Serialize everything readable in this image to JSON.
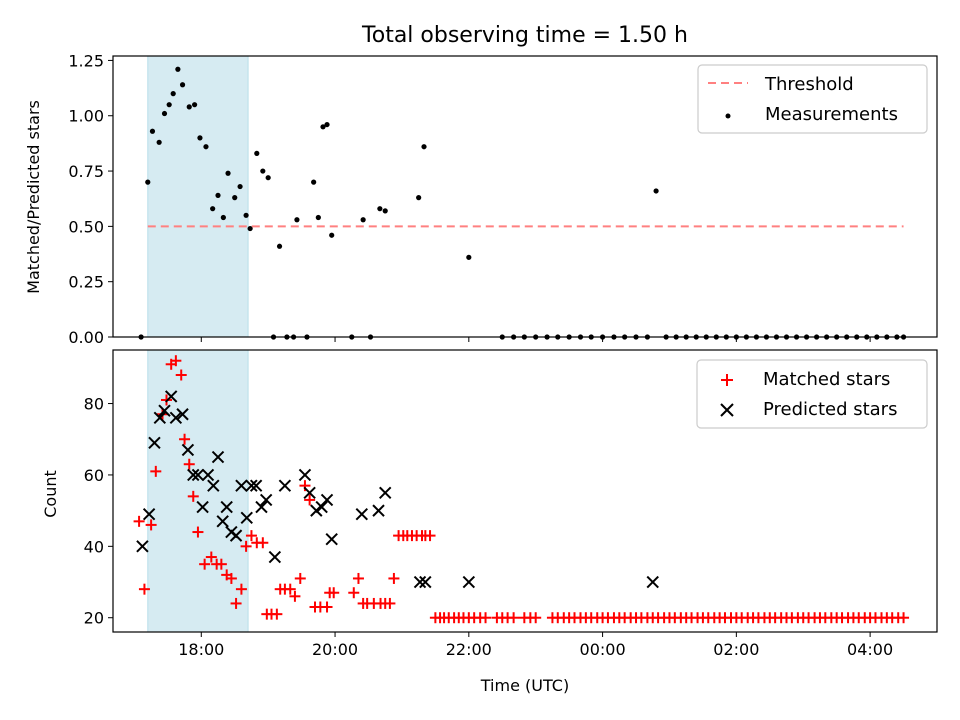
{
  "chart_data": [
    {
      "type": "scatter",
      "title": "Total observing time = 1.50 h",
      "ylabel": "Matched/Predicted stars",
      "xlabel": "",
      "ylim": [
        0,
        1.27
      ],
      "yticks": [
        0,
        0.25,
        0.5,
        0.75,
        1.0,
        1.25
      ],
      "ytick_labels": [
        "0.00",
        "0.25",
        "0.50",
        "0.75",
        "1.00",
        "1.25"
      ],
      "xlim_hours": [
        16.68,
        29.0
      ],
      "xtick_hours": [
        18,
        20,
        22,
        24,
        26,
        28
      ],
      "xtick_labels": [
        "",
        "",
        "",
        "",
        "",
        ""
      ],
      "shaded_span_hours": [
        17.2,
        18.7
      ],
      "threshold": {
        "name": "Threshold",
        "value": 0.5,
        "x_start_hours": 17.2,
        "x_end_hours": 28.5,
        "color": "#ff8080"
      },
      "legend": [
        "Threshold",
        "Measurements"
      ],
      "legend_position": "upper right",
      "series": [
        {
          "name": "Measurements",
          "color": "#000000",
          "time_hours": [
            17.1,
            17.2,
            17.27,
            17.37,
            17.45,
            17.52,
            17.58,
            17.65,
            17.72,
            17.82,
            17.9,
            17.98,
            18.07,
            18.17,
            18.25,
            18.33,
            18.4,
            18.5,
            18.58,
            18.67,
            18.73,
            18.83,
            18.92,
            19.0,
            19.08,
            19.17,
            19.28,
            19.38,
            19.43,
            19.58,
            19.68,
            19.75,
            19.82,
            19.88,
            19.95,
            20.25,
            20.42,
            20.53,
            20.67,
            20.75,
            21.25,
            21.33,
            22.0,
            22.5,
            22.67,
            22.83,
            23.0,
            23.17,
            23.33,
            23.5,
            23.67,
            23.83,
            24.0,
            24.17,
            24.33,
            24.5,
            24.67,
            24.8,
            24.95,
            25.1,
            25.25,
            25.4,
            25.55,
            25.7,
            25.85,
            26.0,
            26.15,
            26.3,
            26.45,
            26.6,
            26.75,
            26.9,
            27.05,
            27.2,
            27.35,
            27.5,
            27.65,
            27.8,
            27.95,
            28.1,
            28.25,
            28.4,
            28.5
          ],
          "values": [
            0,
            0.7,
            0.93,
            0.88,
            1.01,
            1.05,
            1.1,
            1.21,
            1.14,
            1.04,
            1.05,
            0.9,
            0.86,
            0.58,
            0.64,
            0.54,
            0.74,
            0.63,
            0.68,
            0.55,
            0.49,
            0.83,
            0.75,
            0.72,
            0,
            0.41,
            0,
            0,
            0.53,
            0,
            0.7,
            0.54,
            0.95,
            0.96,
            0.46,
            0,
            0.53,
            0,
            0.58,
            0.57,
            0.63,
            0.86,
            0.36,
            0,
            0,
            0,
            0,
            0,
            0,
            0,
            0,
            0,
            0,
            0,
            0,
            0,
            0,
            0.66,
            0,
            0,
            0,
            0,
            0,
            0,
            0,
            0,
            0,
            0,
            0,
            0,
            0,
            0,
            0,
            0,
            0,
            0,
            0,
            0,
            0,
            0,
            0,
            0,
            0
          ]
        }
      ]
    },
    {
      "type": "scatter",
      "title": "",
      "ylabel": "Count",
      "xlabel": "Time (UTC)",
      "ylim": [
        16,
        95
      ],
      "yticks": [
        20,
        40,
        60,
        80
      ],
      "ytick_labels": [
        "20",
        "40",
        "60",
        "80"
      ],
      "xlim_hours": [
        16.68,
        29.0
      ],
      "xtick_hours": [
        18,
        20,
        22,
        24,
        26,
        28
      ],
      "xtick_labels": [
        "18:00",
        "20:00",
        "22:00",
        "00:00",
        "02:00",
        "04:00"
      ],
      "shaded_span_hours": [
        17.2,
        18.7
      ],
      "legend": [
        "Matched stars",
        "Predicted stars"
      ],
      "legend_position": "upper right",
      "series": [
        {
          "name": "Matched stars",
          "marker": "plus",
          "color": "#ff0000",
          "time_hours": [
            17.07,
            17.15,
            17.25,
            17.32,
            17.42,
            17.48,
            17.55,
            17.62,
            17.7,
            17.75,
            17.82,
            17.88,
            17.95,
            18.05,
            18.15,
            18.23,
            18.3,
            18.38,
            18.45,
            18.52,
            18.6,
            18.67,
            18.75,
            18.83,
            18.92,
            18.98,
            19.05,
            19.13,
            19.18,
            19.25,
            19.33,
            19.4,
            19.48,
            19.55,
            19.62,
            19.7,
            19.78,
            19.88,
            19.92,
            19.98,
            20.28,
            20.35,
            20.42,
            20.48,
            20.58,
            20.68,
            20.75,
            20.82,
            20.88,
            20.95,
            21.02,
            21.08,
            21.15,
            21.22,
            21.3,
            21.35,
            21.42,
            21.5,
            21.57,
            21.63,
            21.7,
            21.78,
            21.85,
            21.92,
            22.0,
            22.08,
            22.17,
            22.25,
            22.42,
            22.5,
            22.58,
            22.67,
            22.83,
            22.92,
            23.0,
            23.25,
            23.33,
            23.42,
            23.5,
            23.58,
            23.67,
            23.75,
            23.83,
            23.92,
            24.0,
            24.08,
            24.17,
            24.25,
            24.33,
            24.42,
            24.5,
            24.58,
            24.67,
            24.75,
            24.83,
            24.92,
            25.0,
            25.08,
            25.17,
            25.25,
            25.33,
            25.42,
            25.5,
            25.58,
            25.67,
            25.75,
            25.83,
            25.92,
            26.0,
            26.08,
            26.17,
            26.25,
            26.33,
            26.42,
            26.5,
            26.58,
            26.67,
            26.75,
            26.83,
            26.92,
            27.0,
            27.08,
            27.17,
            27.25,
            27.33,
            27.42,
            27.5,
            27.58,
            27.67,
            27.75,
            27.83,
            27.92,
            28.0,
            28.08,
            28.17,
            28.25,
            28.33,
            28.42,
            28.5
          ],
          "values": [
            47,
            28,
            46,
            61,
            77,
            81,
            91,
            92,
            88,
            70,
            63,
            54,
            44,
            35,
            37,
            35,
            35,
            32,
            31,
            24,
            28,
            40,
            43,
            41,
            41,
            21,
            21,
            21,
            28,
            28,
            28,
            26,
            31,
            57,
            53,
            23,
            23,
            23,
            27,
            27,
            27,
            31,
            24,
            24,
            24,
            24,
            24,
            24,
            31,
            43,
            43,
            43,
            43,
            43,
            43,
            43,
            43,
            20,
            20,
            20,
            20,
            20,
            20,
            20,
            20,
            20,
            20,
            20,
            20,
            20,
            20,
            20,
            20,
            20,
            20,
            20,
            20,
            20,
            20,
            20,
            20,
            20,
            20,
            20,
            20,
            20,
            20,
            20,
            20,
            20,
            20,
            20,
            20,
            20,
            20,
            20,
            20,
            20,
            20,
            20,
            20,
            20,
            20,
            20,
            20,
            20,
            20,
            20,
            20,
            20,
            20,
            20,
            20,
            20,
            20,
            20,
            20,
            20,
            20,
            20,
            20,
            20,
            20,
            20,
            20,
            20,
            20,
            20,
            20,
            20,
            20,
            20,
            20,
            20,
            20,
            20,
            20,
            20,
            20
          ]
        },
        {
          "name": "Predicted stars",
          "marker": "cross",
          "color": "#000000",
          "time_hours": [
            17.12,
            17.22,
            17.3,
            17.38,
            17.45,
            17.55,
            17.62,
            17.72,
            17.8,
            17.88,
            17.95,
            18.02,
            18.1,
            18.18,
            18.25,
            18.32,
            18.38,
            18.45,
            18.52,
            18.6,
            18.68,
            18.75,
            18.82,
            18.9,
            18.97,
            19.1,
            19.25,
            19.55,
            19.62,
            19.72,
            19.8,
            19.88,
            19.95,
            20.4,
            20.65,
            20.75,
            21.27,
            21.35,
            22.0,
            24.75
          ],
          "values": [
            40,
            49,
            69,
            76,
            78,
            82,
            76,
            77,
            67,
            60,
            60,
            51,
            60,
            57,
            65,
            47,
            51,
            44,
            43,
            57,
            48,
            57,
            57,
            51,
            53,
            37,
            57,
            60,
            55,
            50,
            51,
            53,
            42,
            49,
            50,
            55,
            30,
            30,
            30,
            30
          ]
        }
      ]
    }
  ]
}
